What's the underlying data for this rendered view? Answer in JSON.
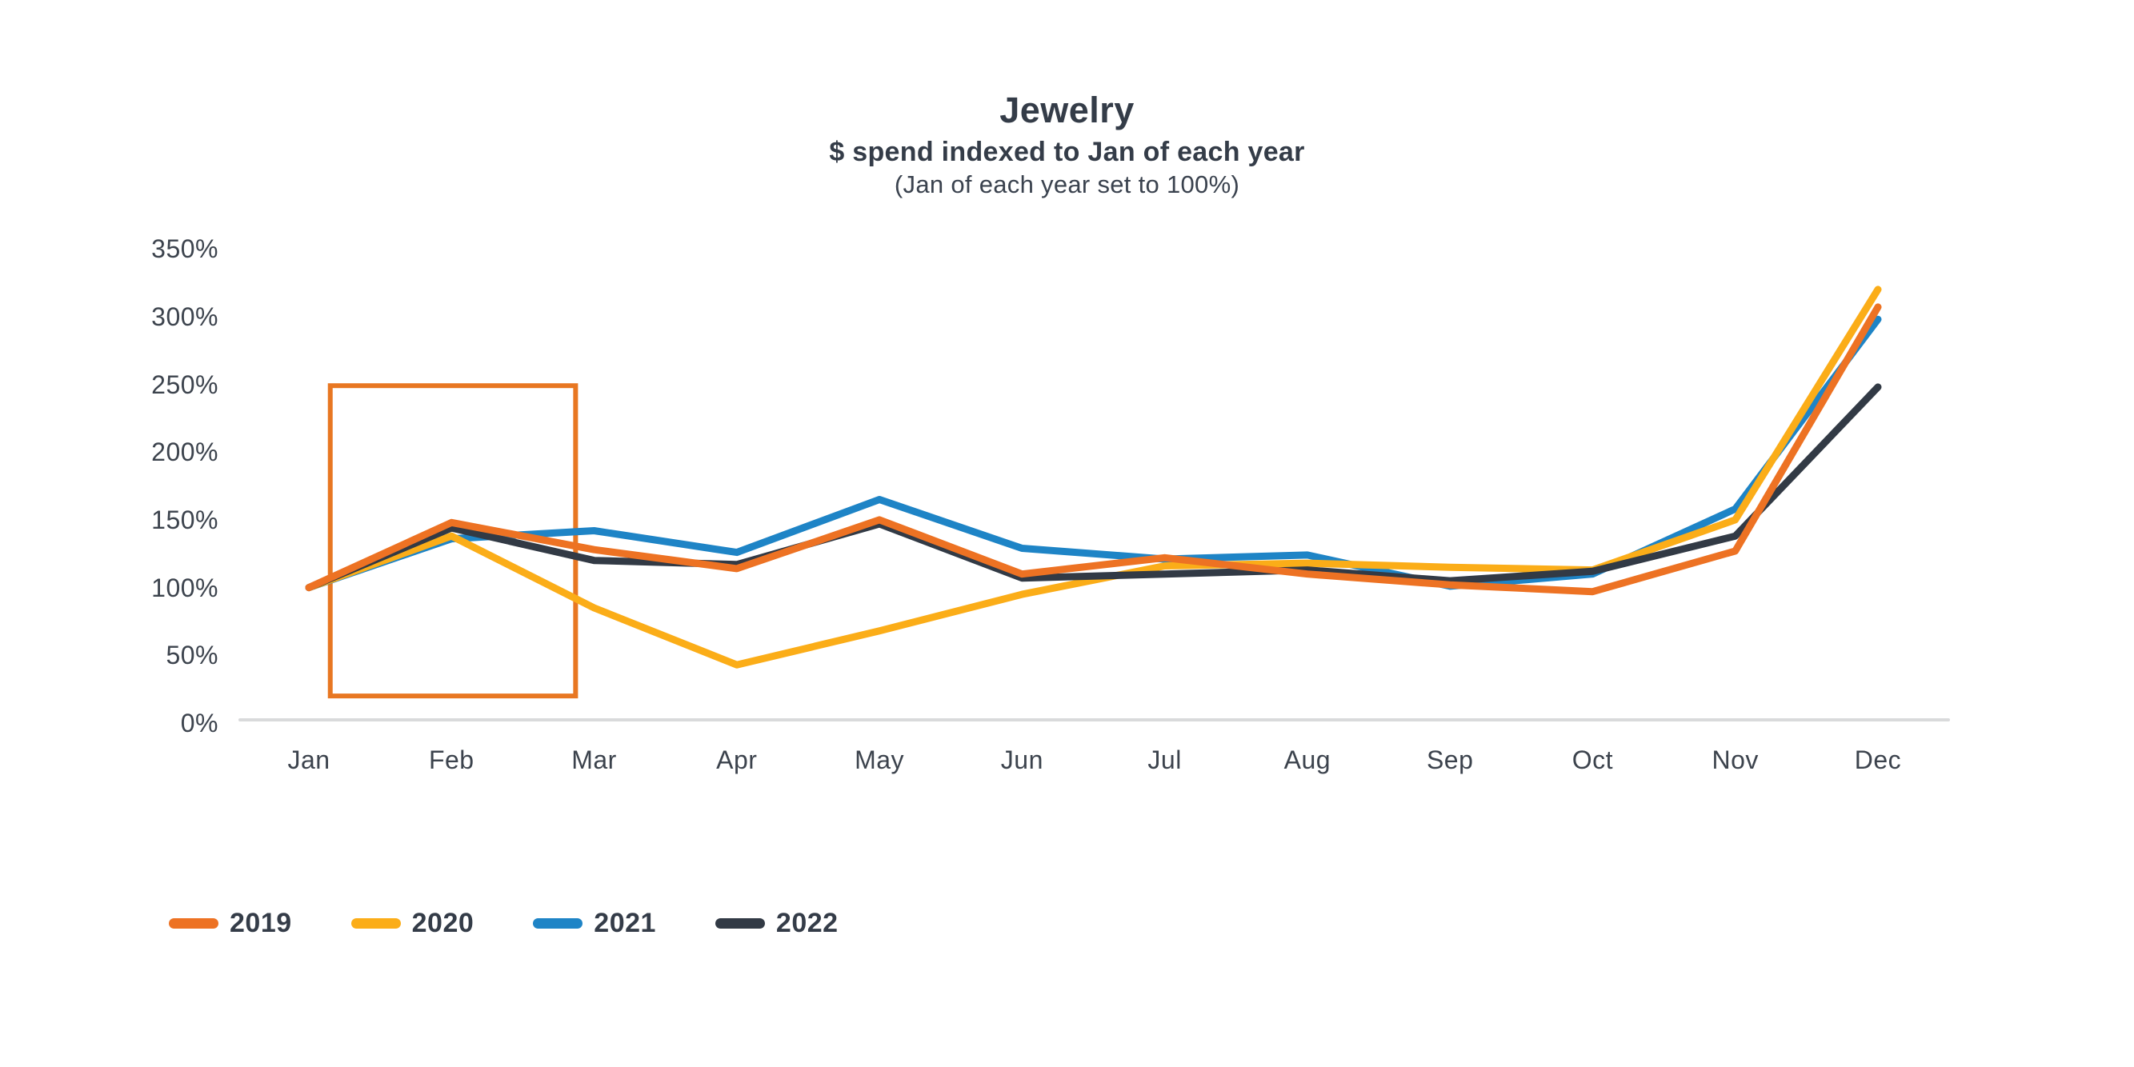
{
  "title": "Jewelry",
  "subtitle": "$ spend indexed to Jan of each year",
  "subtitle_note": "(Jan of each year set to 100%)",
  "chart_data": {
    "type": "line",
    "title": "Jewelry",
    "subtitle": "$ spend indexed to Jan of each year",
    "note": "(Jan of each year set to 100%)",
    "categories": [
      "Jan",
      "Feb",
      "Mar",
      "Apr",
      "May",
      "Jun",
      "Jul",
      "Aug",
      "Sep",
      "Oct",
      "Nov",
      "Dec"
    ],
    "unit": "%",
    "ylim": [
      0,
      350
    ],
    "y_ticks": [
      0,
      50,
      100,
      150,
      200,
      250,
      300,
      350
    ],
    "y_tick_labels": [
      "0%",
      "50%",
      "100%",
      "150%",
      "200%",
      "250%",
      "300%",
      "350%"
    ],
    "grid": false,
    "legend_position": "bottom-left",
    "axis_line_color": "#D9DADB",
    "text_color": "#343C48",
    "series": [
      {
        "name": "2019",
        "color": "#ED7223",
        "values": [
          100,
          148,
          128,
          114,
          150,
          110,
          122,
          110,
          102,
          97,
          127,
          307
        ]
      },
      {
        "name": "2020",
        "color": "#FBAD18",
        "values": [
          100,
          138,
          85,
          43,
          68,
          95,
          116,
          118,
          115,
          113,
          150,
          320
        ]
      },
      {
        "name": "2021",
        "color": "#1E84C6",
        "values": [
          100,
          136,
          142,
          126,
          165,
          129,
          121,
          124,
          101,
          110,
          158,
          298
        ]
      },
      {
        "name": "2022",
        "color": "#323A45",
        "values": [
          100,
          144,
          120,
          117,
          147,
          107,
          110,
          113,
          105,
          112,
          138,
          248
        ]
      }
    ],
    "annotations": [
      {
        "type": "rect",
        "name": "jan-feb-highlight-box",
        "color": "#E87722",
        "month_index_start": 0.15,
        "month_index_end": 1.87,
        "value_start": 20,
        "value_end": 249
      }
    ]
  }
}
